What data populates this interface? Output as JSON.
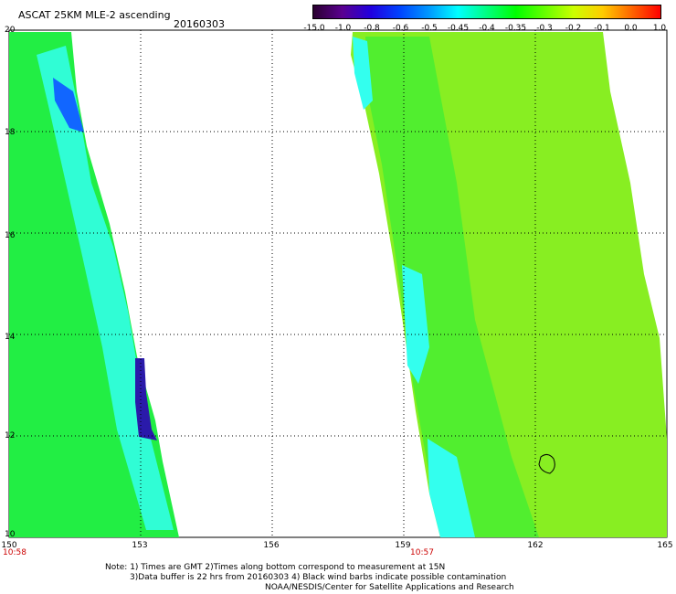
{
  "title": "ASCAT 25KM MLE-2 ascending",
  "date": "20160303",
  "colorbar": {
    "labels": [
      "-15.0",
      "-1.0",
      "-0.8",
      "-0.6",
      "-0.5",
      "-0.45",
      "-0.4",
      "-0.35",
      "-0.3",
      "-0.2",
      "-0.1",
      "0.0",
      "1.0"
    ],
    "colors": [
      "#2a0030",
      "#5a0090",
      "#2000e0",
      "#0044ff",
      "#0099ff",
      "#00ffff",
      "#00ff80",
      "#00ff00",
      "#66ff00",
      "#ccff00",
      "#ffcc00",
      "#ff6600",
      "#ff0000"
    ]
  },
  "axes": {
    "y_ticks": [
      "20",
      "18",
      "16",
      "14",
      "12",
      "10"
    ],
    "x_ticks": [
      "150",
      "153",
      "156",
      "159",
      "162",
      "165"
    ],
    "lat_range": [
      10,
      20
    ],
    "lon_range": [
      150,
      165
    ]
  },
  "pass_times": {
    "left": "10:58",
    "right": "10:57"
  },
  "notes": {
    "line1": "Note: 1) Times are GMT 2)Times along bottom correspond to measurement at 15N",
    "line2": "3)Data buffer is 22 hrs from 20160303 4) Black wind barbs indicate possible contamination",
    "line3": "NOAA/NESDIS/Center for Satellite Applications and Research"
  }
}
